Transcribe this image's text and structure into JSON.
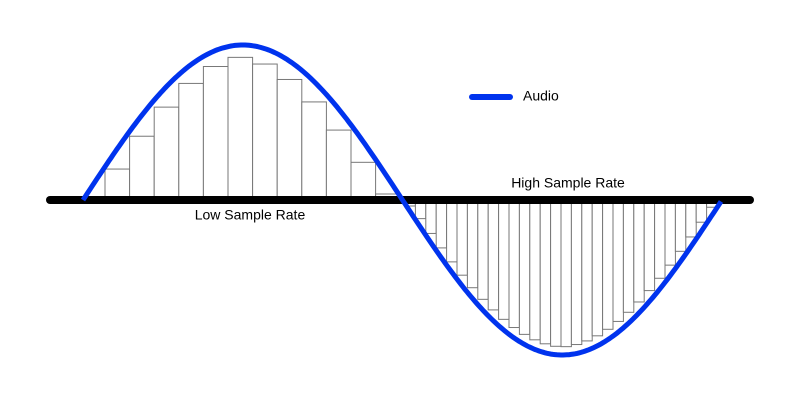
{
  "legend": {
    "label": "Audio"
  },
  "annotations": {
    "high_rate": "High Sample Rate",
    "low_rate": "Low Sample Rate"
  }
}
